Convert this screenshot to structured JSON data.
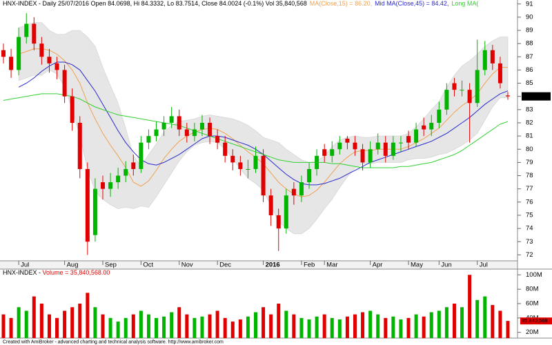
{
  "chart_data": [
    {
      "type": "candlestick",
      "title": "HNX-INDEX - Daily 25/07/2016 Open 84.0698, Hi 84.3332, Lo 83.7514, Close 84.0024 (-0.1%) Vol 35,840,568",
      "categories": [
        null,
        null,
        "Jul",
        null,
        null,
        null,
        null,
        null,
        "Aug",
        null,
        null,
        null,
        null,
        "Sep",
        null,
        null,
        null,
        null,
        "Oct",
        null,
        null,
        null,
        null,
        "Nov",
        null,
        null,
        null,
        null,
        "Dec",
        null,
        null,
        null,
        null,
        null,
        "2016",
        null,
        null,
        null,
        null,
        "Feb",
        null,
        null,
        "Mar",
        null,
        null,
        null,
        null,
        null,
        "Apr",
        null,
        null,
        null,
        null,
        "May",
        null,
        null,
        null,
        "Jun",
        null,
        null,
        null,
        null,
        "Jul",
        null,
        null,
        null,
        null
      ],
      "open": [
        87.5,
        87,
        86,
        88.5,
        89.5,
        88,
        87,
        86.5,
        86,
        84,
        82,
        78.5,
        73.5,
        77.5,
        77,
        77.5,
        78,
        79,
        78.5,
        80.5,
        81,
        81.5,
        82,
        82.5,
        81.5,
        81,
        81.5,
        82,
        81,
        80.5,
        79.5,
        79,
        78.5,
        78.5,
        79.5,
        76.5,
        75,
        74,
        77,
        76.5,
        77.5,
        78.5,
        80,
        79.5,
        80,
        80.8,
        80.5,
        80,
        79,
        80,
        80.5,
        79.5,
        80.5,
        81,
        80.5,
        81.8,
        81.5,
        82,
        83,
        85,
        84.5,
        84.5,
        83.5,
        86,
        87.5,
        86.5,
        84.0698
      ],
      "high": [
        88,
        87.6,
        89.2,
        90.3,
        90,
        88.5,
        87.6,
        87,
        86.4,
        84.6,
        82.5,
        79,
        77.8,
        78,
        78.2,
        78.6,
        79.1,
        79.6,
        81,
        81.5,
        82.1,
        82.5,
        83.2,
        83,
        82,
        82,
        82.6,
        82.4,
        81.5,
        81,
        80,
        79.5,
        79.2,
        80.2,
        80,
        77,
        75.5,
        77,
        77.5,
        78,
        79,
        80,
        80.4,
        80.6,
        81,
        81,
        81,
        80.4,
        80.6,
        81.2,
        81,
        81,
        81,
        81.4,
        82,
        82.4,
        82.6,
        83.6,
        85,
        85.4,
        85.2,
        85,
        88.3,
        88.2,
        87.9,
        87,
        84.3332
      ],
      "low": [
        86.5,
        85.4,
        85.6,
        88,
        87.5,
        86.4,
        85.8,
        85.3,
        83.5,
        81.4,
        77.8,
        72,
        73,
        76.2,
        76.4,
        77,
        77.5,
        78,
        78.2,
        80,
        80.6,
        81,
        81.6,
        81,
        80.5,
        80.6,
        81,
        80.4,
        80,
        79,
        78.4,
        78,
        77.8,
        78.2,
        76,
        74.2,
        72.3,
        73.6,
        75.8,
        76,
        77,
        78,
        79,
        79,
        79.6,
        80,
        79.5,
        78.4,
        78.6,
        79.6,
        79,
        79.2,
        79.8,
        80,
        80.2,
        81,
        81,
        81.6,
        82.6,
        84,
        84,
        80.5,
        83.2,
        85.6,
        86,
        84.6,
        83.7514
      ],
      "close": [
        87,
        86,
        88.5,
        89.5,
        88,
        87,
        86.5,
        86,
        84,
        82,
        78.5,
        73,
        77,
        77,
        77.5,
        78,
        78.5,
        78.5,
        80.5,
        81,
        81.5,
        82,
        82.5,
        81.5,
        81,
        81.5,
        82,
        81,
        80.5,
        79.5,
        79,
        78.5,
        78.5,
        79.5,
        76.5,
        75,
        74,
        76.5,
        76.5,
        77.5,
        78.5,
        79.5,
        79.5,
        80,
        80.5,
        80.5,
        80,
        79,
        80,
        80.5,
        79.5,
        80.5,
        80.5,
        80.5,
        81.5,
        81.5,
        82,
        83,
        84.5,
        84.5,
        84.5,
        83.5,
        86,
        87.5,
        86.5,
        85,
        84.0024
      ],
      "up_color": "#00b400",
      "down_color": "#e00000",
      "band": {
        "color": "#e6e6e6",
        "upper": [
          null,
          null,
          89.2,
          89.4,
          89.6,
          89.6,
          89,
          88.7,
          88.7,
          89,
          89,
          88.5,
          87.8,
          86.2,
          84.8,
          83.5,
          81.6,
          79.5,
          78.7,
          79.6,
          80.4,
          81.3,
          81.8,
          82.1,
          82.2,
          82.3,
          82.5,
          82.6,
          82.5,
          82.4,
          82.3,
          82.1,
          81.8,
          81.4,
          80.9,
          80.7,
          80.5,
          80,
          79.6,
          79.2,
          79,
          79.1,
          79.5,
          80.2,
          80.7,
          80.9,
          81,
          80.9,
          80.9,
          81,
          81,
          81,
          81,
          81.2,
          81.7,
          82.3,
          83,
          83.6,
          84.7,
          85.6,
          86.3,
          86.7,
          87.2,
          87.8,
          88.2,
          88.5,
          88.5
        ],
        "lower": [
          null,
          null,
          85.2,
          85.4,
          85.6,
          85.6,
          86,
          85.7,
          84.7,
          83,
          81,
          78.5,
          76.8,
          76.2,
          75.8,
          75.5,
          75.6,
          75.5,
          75.7,
          75.6,
          76.4,
          77.3,
          78.2,
          79.1,
          79.8,
          80.3,
          80.5,
          80.6,
          80.5,
          80,
          79.3,
          78.5,
          77.8,
          77.4,
          76.9,
          75.7,
          74.5,
          74,
          73.6,
          73.6,
          74,
          74.7,
          75.5,
          76.2,
          77.1,
          77.9,
          78.6,
          78.9,
          78.9,
          79,
          79,
          79,
          79,
          79.2,
          79.3,
          79.3,
          79.4,
          79.6,
          79.7,
          80,
          80.3,
          80.7,
          81.2,
          82.2,
          83.2,
          83.9,
          83.9
        ]
      },
      "series": [
        {
          "name": "MA(Close,15) = 86.20,",
          "color": "#f0a050",
          "values": [
            null,
            null,
            87.2,
            87.4,
            87.6,
            87.6,
            87.5,
            87.2,
            86.7,
            86,
            85,
            83.5,
            82.3,
            81.2,
            80.3,
            79.5,
            78.6,
            77.5,
            77.2,
            77.6,
            78.4,
            79.3,
            80,
            80.6,
            81,
            81.3,
            81.5,
            81.6,
            81.5,
            81.2,
            80.8,
            80.3,
            79.8,
            79.4,
            78.9,
            78.2,
            77.5,
            77,
            76.6,
            76.4,
            76.5,
            76.9,
            77.5,
            78.2,
            78.9,
            79.4,
            79.8,
            79.9,
            79.9,
            80,
            80,
            80,
            80,
            80.2,
            80.5,
            80.8,
            81.2,
            81.6,
            82.2,
            82.8,
            83.3,
            83.7,
            84.2,
            85,
            85.7,
            86.2,
            86.2
          ]
        },
        {
          "name": "Mid MA(Close,45) = 84.42,",
          "color": "#2828d0",
          "values": [
            null,
            null,
            84.7,
            85,
            85.4,
            85.9,
            86.3,
            86.6,
            86.6,
            86.4,
            86,
            85.2,
            84.4,
            83.4,
            82.4,
            81.4,
            80.5,
            79.8,
            79.2,
            78.9,
            78.8,
            79,
            79.3,
            79.6,
            80,
            80.4,
            80.8,
            81,
            81,
            80.9,
            80.7,
            80.5,
            80.3,
            80,
            79.6,
            79.1,
            78.6,
            78.1,
            77.7,
            77.4,
            77.3,
            77.3,
            77.4,
            77.6,
            77.8,
            78.1,
            78.4,
            78.7,
            79,
            79.2,
            79.4,
            79.6,
            79.8,
            80,
            80.2,
            80.4,
            80.6,
            80.9,
            81.2,
            81.6,
            82,
            82.4,
            82.9,
            83.4,
            83.8,
            84.2,
            84.42
          ]
        },
        {
          "name": "Long MA(",
          "color": "#30d030",
          "values": [
            83.7,
            83.8,
            83.9,
            84,
            84.1,
            84.2,
            84.2,
            84.2,
            84.1,
            84,
            83.8,
            83.5,
            83.2,
            83,
            82.8,
            82.6,
            82.5,
            82.4,
            82.3,
            82.2,
            82.1,
            82,
            81.9,
            81.8,
            81.6,
            81.4,
            81.2,
            81,
            80.8,
            80.6,
            80.4,
            80.2,
            80,
            79.8,
            79.6,
            79.4,
            79.2,
            79.1,
            79,
            79,
            79,
            79,
            79,
            78.9,
            78.9,
            78.8,
            78.7,
            78.6,
            78.6,
            78.6,
            78.6,
            78.6,
            78.7,
            78.7,
            78.8,
            78.9,
            79,
            79.2,
            79.4,
            79.6,
            79.9,
            80.3,
            80.7,
            81.1,
            81.5,
            81.9,
            82.1
          ]
        }
      ],
      "ylim": [
        71.55,
        91.3
      ],
      "yticks": [
        72,
        73,
        74,
        75,
        76,
        77,
        78,
        79,
        80,
        81,
        82,
        83,
        84,
        85,
        86,
        87,
        88,
        89,
        90,
        91
      ]
    },
    {
      "type": "bar",
      "title": "HNX-INDEX -",
      "subtitle": "Volume = 35,840,568.00",
      "subtitle_color": "#e00000",
      "values": [
        45,
        40,
        55,
        50,
        70,
        60,
        45,
        40,
        50,
        55,
        60,
        75,
        55,
        45,
        40,
        35,
        40,
        45,
        50,
        45,
        40,
        42,
        48,
        55,
        45,
        40,
        42,
        45,
        50,
        40,
        35,
        38,
        42,
        48,
        55,
        45,
        60,
        50,
        45,
        40,
        38,
        42,
        45,
        40,
        38,
        42,
        45,
        48,
        50,
        45,
        40,
        42,
        38,
        40,
        45,
        42,
        48,
        50,
        55,
        60,
        55,
        100,
        65,
        70,
        58,
        50,
        35.840568
      ],
      "last_value_label": "35,840,568",
      "up_color": "#00b400",
      "down_color": "#e00000",
      "ylim": [
        12,
        108
      ],
      "yticks": [
        {
          "value": 20,
          "label": "20M"
        },
        {
          "value": 40,
          "label": "40M"
        },
        {
          "value": 60,
          "label": "60M"
        },
        {
          "value": 80,
          "label": "80M"
        },
        {
          "value": 100,
          "label": "100M"
        }
      ]
    }
  ],
  "footer": "Created with AmiBroker - advanced charting and technical analysis software. http://www.amibroker.com"
}
